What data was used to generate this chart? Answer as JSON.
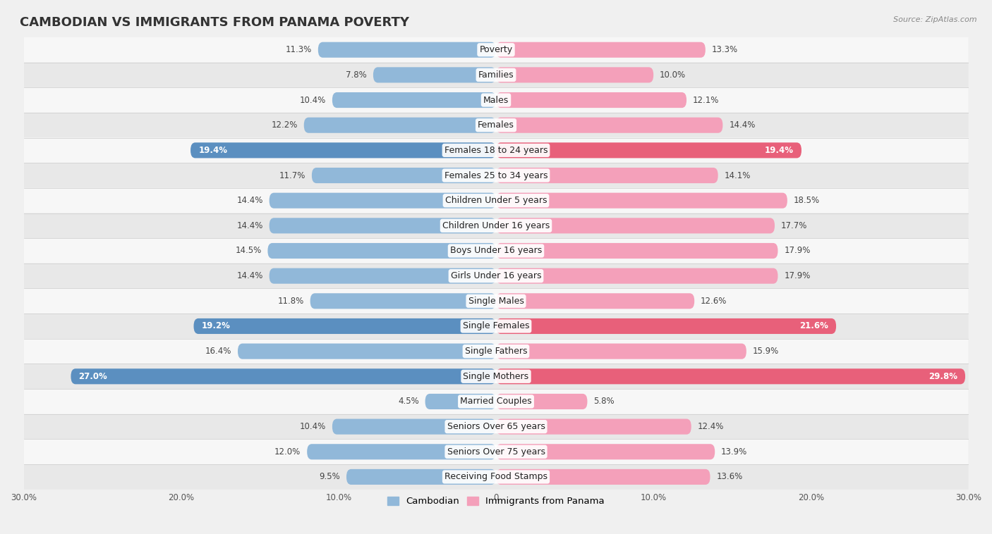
{
  "title": "CAMBODIAN VS IMMIGRANTS FROM PANAMA POVERTY",
  "source": "Source: ZipAtlas.com",
  "categories": [
    "Poverty",
    "Families",
    "Males",
    "Females",
    "Females 18 to 24 years",
    "Females 25 to 34 years",
    "Children Under 5 years",
    "Children Under 16 years",
    "Boys Under 16 years",
    "Girls Under 16 years",
    "Single Males",
    "Single Females",
    "Single Fathers",
    "Single Mothers",
    "Married Couples",
    "Seniors Over 65 years",
    "Seniors Over 75 years",
    "Receiving Food Stamps"
  ],
  "cambodian": [
    11.3,
    7.8,
    10.4,
    12.2,
    19.4,
    11.7,
    14.4,
    14.4,
    14.5,
    14.4,
    11.8,
    19.2,
    16.4,
    27.0,
    4.5,
    10.4,
    12.0,
    9.5
  ],
  "panama": [
    13.3,
    10.0,
    12.1,
    14.4,
    19.4,
    14.1,
    18.5,
    17.7,
    17.9,
    17.9,
    12.6,
    21.6,
    15.9,
    29.8,
    5.8,
    12.4,
    13.9,
    13.6
  ],
  "cambodian_color": "#91b8d9",
  "panama_color": "#f4a0ba",
  "cambodian_highlight_color": "#5b8fc0",
  "panama_highlight_color": "#e8607a",
  "highlight_rows": [
    4,
    11,
    13
  ],
  "xlim": 30,
  "background_color": "#f0f0f0",
  "row_bg_light": "#f7f7f7",
  "row_bg_dark": "#e8e8e8",
  "legend_cambodian": "Cambodian",
  "legend_panama": "Immigrants from Panama",
  "title_fontsize": 13,
  "label_fontsize": 9,
  "value_fontsize": 8.5
}
